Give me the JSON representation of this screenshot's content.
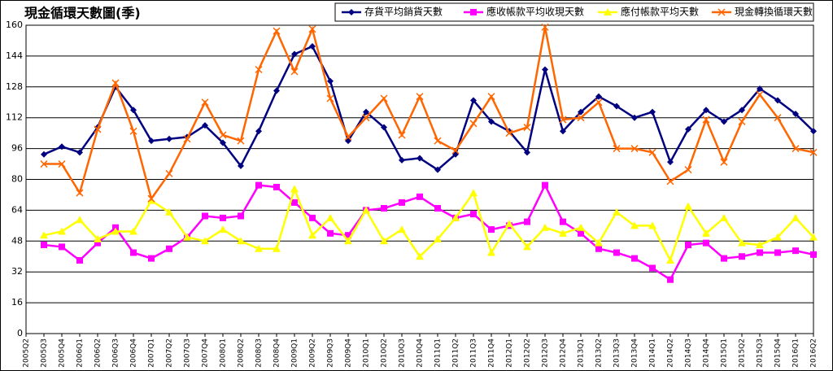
{
  "chart_data": {
    "type": "line",
    "title": "現金循環天數圖(季)",
    "categories": [
      "2005Q2",
      "2005Q3",
      "2005Q4",
      "2006Q1",
      "2006Q2",
      "2006Q3",
      "2006Q4",
      "2007Q1",
      "2007Q2",
      "2007Q3",
      "2007Q4",
      "2008Q1",
      "2008Q2",
      "2008Q3",
      "2008Q4",
      "2009Q1",
      "2009Q2",
      "2009Q3",
      "2009Q4",
      "2010Q1",
      "2010Q2",
      "2010Q3",
      "2010Q4",
      "2011Q1",
      "2011Q2",
      "2011Q3",
      "2011Q4",
      "2012Q1",
      "2012Q2",
      "2012Q3",
      "2012Q4",
      "2013Q1",
      "2013Q2",
      "2013Q3",
      "2013Q4",
      "2014Q1",
      "2014Q2",
      "2014Q3",
      "2014Q4",
      "2015Q1",
      "2015Q2",
      "2015Q3",
      "2015Q4",
      "2016Q1",
      "2016Q2"
    ],
    "series": [
      {
        "name": "存貨平均銷貨天數",
        "color": "#000080",
        "marker": "diamond",
        "values": [
          null,
          93,
          97,
          94,
          107,
          128,
          116,
          100,
          101,
          102,
          108,
          99,
          87,
          105,
          126,
          145,
          149,
          131,
          100,
          115,
          107,
          90,
          91,
          85,
          93,
          121,
          110,
          105,
          94,
          137,
          105,
          115,
          123,
          118,
          112,
          115,
          89,
          106,
          116,
          110,
          116,
          127,
          121,
          114,
          105
        ]
      },
      {
        "name": "應收帳款平均收現天數",
        "color": "#ff00ff",
        "marker": "square",
        "values": [
          null,
          46,
          45,
          38,
          47,
          55,
          42,
          39,
          44,
          50,
          61,
          60,
          61,
          77,
          76,
          68,
          60,
          52,
          51,
          64,
          65,
          68,
          71,
          65,
          60,
          62,
          54,
          56,
          58,
          77,
          58,
          52,
          44,
          42,
          39,
          34,
          28,
          46,
          47,
          39,
          40,
          42,
          42,
          43,
          41
        ]
      },
      {
        "name": "應付帳款平均天數",
        "color": "#ffff00",
        "marker": "triangle",
        "values": [
          null,
          51,
          53,
          59,
          49,
          53,
          53,
          69,
          63,
          50,
          48,
          54,
          48,
          44,
          44,
          75,
          51,
          60,
          48,
          64,
          48,
          54,
          40,
          49,
          60,
          73,
          42,
          57,
          45,
          55,
          52,
          55,
          47,
          63,
          56,
          56,
          38,
          66,
          52,
          60,
          47,
          46,
          50,
          60,
          50
        ]
      },
      {
        "name": "現金轉換循環天數",
        "color": "#ff6600",
        "marker": "x",
        "values": [
          null,
          88,
          88,
          73,
          106,
          130,
          105,
          70,
          83,
          101,
          120,
          103,
          100,
          137,
          157,
          136,
          158,
          122,
          102,
          112,
          122,
          103,
          123,
          100,
          95,
          109,
          123,
          104,
          107,
          159,
          111,
          112,
          120,
          96,
          96,
          94,
          79,
          85,
          111,
          89,
          110,
          124,
          112,
          96,
          94
        ]
      }
    ],
    "ylim": [
      0,
      160
    ],
    "yticks": [
      0,
      16,
      32,
      48,
      64,
      80,
      96,
      112,
      128,
      144,
      160
    ],
    "grid": true,
    "legend": "top-right"
  }
}
